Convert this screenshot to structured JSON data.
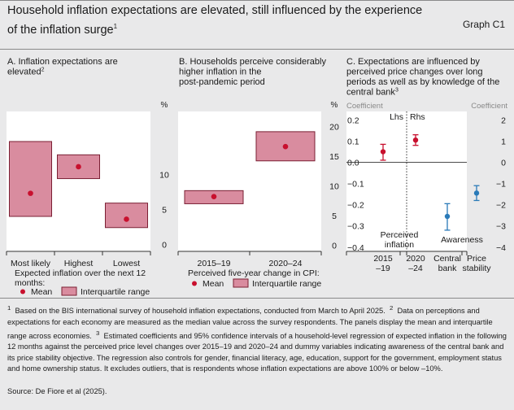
{
  "header": {
    "title": "Household inflation expectations are elevated, still influenced by the experience of the inflation surge",
    "title_note": "1",
    "graph_id": "Graph C1"
  },
  "colors": {
    "box_fill": "#d98c9f",
    "box_stroke": "#7a1f33",
    "red_point": "#c8102e",
    "blue_point": "#2a7ab8",
    "panel_bg": "#ffffff",
    "page_bg": "#e9e9ea"
  },
  "chart_data": [
    {
      "type": "box",
      "panel": "A",
      "title": "A. Inflation expectations are elevated",
      "title_note": "2",
      "unit": "%",
      "ylim": [
        -1,
        19
      ],
      "yticks": [
        0,
        5,
        10
      ],
      "categories": [
        "Most likely",
        "Highest",
        "Lowest"
      ],
      "series": [
        {
          "name": "Mean",
          "values": [
            7.3,
            11.1,
            3.6
          ]
        },
        {
          "name": "Interquartile range",
          "ranges": [
            [
              4,
              14.7
            ],
            [
              9.4,
              12.8
            ],
            [
              2.4,
              5.9
            ]
          ]
        }
      ],
      "legend": {
        "heading": "Expected inflation over the next 12 months:",
        "items": [
          "Mean",
          "Interquartile range"
        ]
      }
    },
    {
      "type": "box",
      "panel": "B",
      "title": "B. Households perceive considerably higher inflation in the post-pandemic period",
      "unit": "%",
      "ylim": [
        -1,
        22.5
      ],
      "yticks": [
        0,
        5,
        10,
        15,
        20
      ],
      "categories": [
        "2015–19",
        "2020–24"
      ],
      "series": [
        {
          "name": "Mean",
          "values": [
            8.2,
            16.6
          ]
        },
        {
          "name": "Interquartile range",
          "ranges": [
            [
              7,
              9.2
            ],
            [
              14.2,
              19.1
            ]
          ]
        }
      ],
      "legend": {
        "heading": "Perceived five-year change in CPI:",
        "items": [
          "Mean",
          "Interquartile range"
        ]
      }
    },
    {
      "type": "errorbar",
      "panel": "C",
      "title": "C. Expectations are influenced by perceived price changes over long periods as well as by knowledge of the central bank",
      "title_note": "3",
      "left_axis": {
        "label": "Coefficient",
        "side_label": "Lhs",
        "ylim": [
          -0.42,
          0.24
        ],
        "ticks": [
          0.2,
          0.1,
          0.0,
          -0.1,
          -0.2,
          -0.3,
          -0.4
        ]
      },
      "right_axis": {
        "label": "Coefficient",
        "side_label": "Rhs",
        "ylim": [
          -4.2,
          2.4
        ],
        "ticks": [
          2,
          1,
          0,
          -1,
          -2,
          -3,
          -4
        ]
      },
      "groups": [
        {
          "label": "Perceived inflation",
          "axis": "left",
          "categories": [
            "2015 –19",
            "2020 –24"
          ],
          "values": [
            0.05,
            0.105
          ],
          "ci": [
            [
              0.01,
              0.085
            ],
            [
              0.08,
              0.13
            ]
          ],
          "color": "#c8102e"
        },
        {
          "label": "Awareness",
          "axis": "right",
          "categories": [
            "Central bank",
            "Price stability"
          ],
          "values": [
            -2.55,
            -1.45
          ],
          "ci": [
            [
              -3.2,
              -1.95
            ],
            [
              -1.8,
              -1.1
            ]
          ],
          "color": "#2a7ab8"
        }
      ]
    }
  ],
  "notes": {
    "n1": "Based on the BIS international survey of household inflation expectations, conducted from March to April 2025.",
    "n2": "Data on perceptions and expectations for each economy are measured as the median value across the survey respondents. The panels display the mean and interquartile range across economies.",
    "n3": "Estimated coefficients and 95% confidence intervals of a household-level regression of expected inflation in the following 12 months against the perceived price level changes over 2015–19 and 2020–24 and dummy variables indicating awareness of the central bank and its price stability objective. The regression also controls for gender, financial literacy, age, education, support for the government, employment status and home ownership status. It excludes outliers, that is respondents whose inflation expectations are above 100% or below –10%.",
    "source": "Source: De Fiore et al (2025)."
  }
}
